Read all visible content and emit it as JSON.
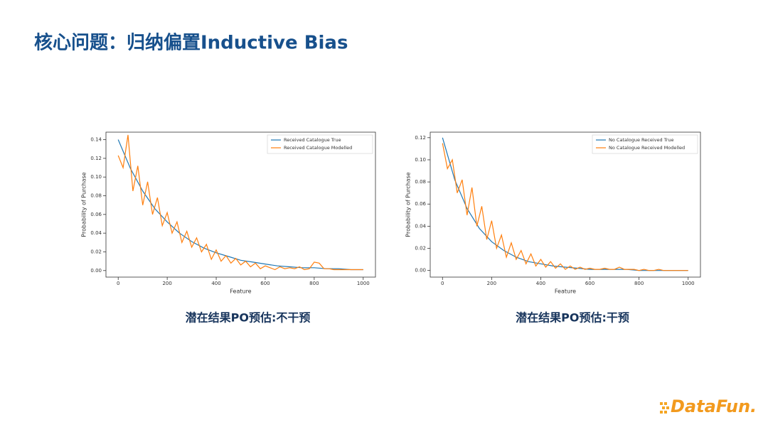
{
  "title": "核心问题：归纳偏置Inductive Bias",
  "logo": "DataFun.",
  "chart_data": [
    {
      "type": "line",
      "caption": "潜在结果PO预估:不干预",
      "xlabel": "Feature",
      "ylabel": "Probability of Purchase",
      "xlim": [
        -50,
        1050
      ],
      "xticks": [
        0,
        200,
        400,
        600,
        800,
        1000
      ],
      "ylim": [
        -0.007,
        0.148
      ],
      "yticks": [
        {
          "value": 0,
          "label": "0.00"
        },
        {
          "value": 0.02,
          "label": "0.02"
        },
        {
          "value": 0.04,
          "label": "0.04"
        },
        {
          "value": 0.06,
          "label": "0.06"
        },
        {
          "value": 0.08,
          "label": "0.08"
        },
        {
          "value": 0.1,
          "label": "0.10"
        },
        {
          "value": 0.12,
          "label": "0.12"
        },
        {
          "value": 0.14,
          "label": "0.14"
        }
      ],
      "legend": "upper right",
      "series": [
        {
          "name": "Received Catalogue True",
          "color": "#1f77b4",
          "x": [
            0,
            50,
            100,
            150,
            200,
            250,
            300,
            350,
            400,
            450,
            500,
            550,
            600,
            650,
            700,
            750,
            800,
            850,
            900,
            950,
            1000
          ],
          "values": [
            0.14,
            0.109,
            0.085,
            0.066,
            0.052,
            0.04,
            0.031,
            0.024,
            0.019,
            0.015,
            0.011,
            0.009,
            0.007,
            0.005,
            0.004,
            0.003,
            0.003,
            0.002,
            0.002,
            0.001,
            0.001
          ]
        },
        {
          "name": "Received Catalogue Modelled",
          "color": "#ff7f0e",
          "x": [
            0,
            20,
            40,
            60,
            80,
            100,
            120,
            140,
            160,
            180,
            200,
            220,
            240,
            260,
            280,
            300,
            320,
            340,
            360,
            380,
            400,
            420,
            440,
            460,
            480,
            500,
            520,
            540,
            560,
            580,
            600,
            620,
            640,
            660,
            680,
            700,
            720,
            740,
            760,
            780,
            800,
            820,
            840,
            860,
            880,
            900,
            920,
            940,
            960,
            980,
            1000
          ],
          "values": [
            0.123,
            0.11,
            0.145,
            0.085,
            0.112,
            0.07,
            0.095,
            0.06,
            0.078,
            0.048,
            0.062,
            0.04,
            0.052,
            0.03,
            0.042,
            0.025,
            0.035,
            0.02,
            0.028,
            0.012,
            0.022,
            0.01,
            0.016,
            0.008,
            0.013,
            0.006,
            0.01,
            0.004,
            0.008,
            0.002,
            0.005,
            0.003,
            0.001,
            0.004,
            0.002,
            0.003,
            0.002,
            0.004,
            0.001,
            0.002,
            0.009,
            0.008,
            0.002,
            0.002,
            0.001,
            0.001,
            0.001,
            0.001,
            0.001,
            0.001,
            0.001
          ]
        }
      ]
    },
    {
      "type": "line",
      "caption": "潜在结果PO预估:干预",
      "xlabel": "Feature",
      "ylabel": "Probability of Purchase",
      "xlim": [
        -50,
        1050
      ],
      "xticks": [
        0,
        200,
        400,
        600,
        800,
        1000
      ],
      "ylim": [
        -0.006,
        0.125
      ],
      "yticks": [
        {
          "value": 0,
          "label": "0.00"
        },
        {
          "value": 0.02,
          "label": "0.02"
        },
        {
          "value": 0.04,
          "label": "0.04"
        },
        {
          "value": 0.06,
          "label": "0.06"
        },
        {
          "value": 0.08,
          "label": "0.08"
        },
        {
          "value": 0.1,
          "label": "0.10"
        },
        {
          "value": 0.12,
          "label": "0.12"
        }
      ],
      "legend": "upper right",
      "series": [
        {
          "name": "No Catalogue Received True",
          "color": "#1f77b4",
          "x": [
            0,
            50,
            100,
            150,
            200,
            250,
            300,
            350,
            400,
            450,
            500,
            550,
            600,
            650,
            700,
            750,
            800,
            850,
            900,
            950,
            1000
          ],
          "values": [
            0.12,
            0.082,
            0.056,
            0.038,
            0.026,
            0.018,
            0.012,
            0.008,
            0.006,
            0.004,
            0.003,
            0.002,
            0.001,
            0.001,
            0.001,
            0.001,
            0.0,
            0.0,
            0.0,
            0.0,
            0.0
          ]
        },
        {
          "name": "No Catalogue Received Modelled",
          "color": "#ff7f0e",
          "x": [
            0,
            20,
            40,
            60,
            80,
            100,
            120,
            140,
            160,
            180,
            200,
            220,
            240,
            260,
            280,
            300,
            320,
            340,
            360,
            380,
            400,
            420,
            440,
            460,
            480,
            500,
            520,
            540,
            560,
            580,
            600,
            620,
            640,
            660,
            680,
            700,
            720,
            740,
            760,
            780,
            800,
            820,
            840,
            860,
            880,
            900,
            920,
            940,
            960,
            980,
            1000
          ],
          "values": [
            0.115,
            0.092,
            0.1,
            0.07,
            0.082,
            0.05,
            0.075,
            0.04,
            0.058,
            0.028,
            0.045,
            0.02,
            0.032,
            0.012,
            0.025,
            0.01,
            0.018,
            0.006,
            0.015,
            0.004,
            0.01,
            0.003,
            0.008,
            0.002,
            0.006,
            0.001,
            0.004,
            0.001,
            0.003,
            0.001,
            0.002,
            0.001,
            0.001,
            0.002,
            0.001,
            0.001,
            0.003,
            0.001,
            0.001,
            0.001,
            0.0,
            0.001,
            0.0,
            0.0,
            0.001,
            0.0,
            0.0,
            0.0,
            0.0,
            0.0,
            0.0
          ]
        }
      ]
    }
  ]
}
